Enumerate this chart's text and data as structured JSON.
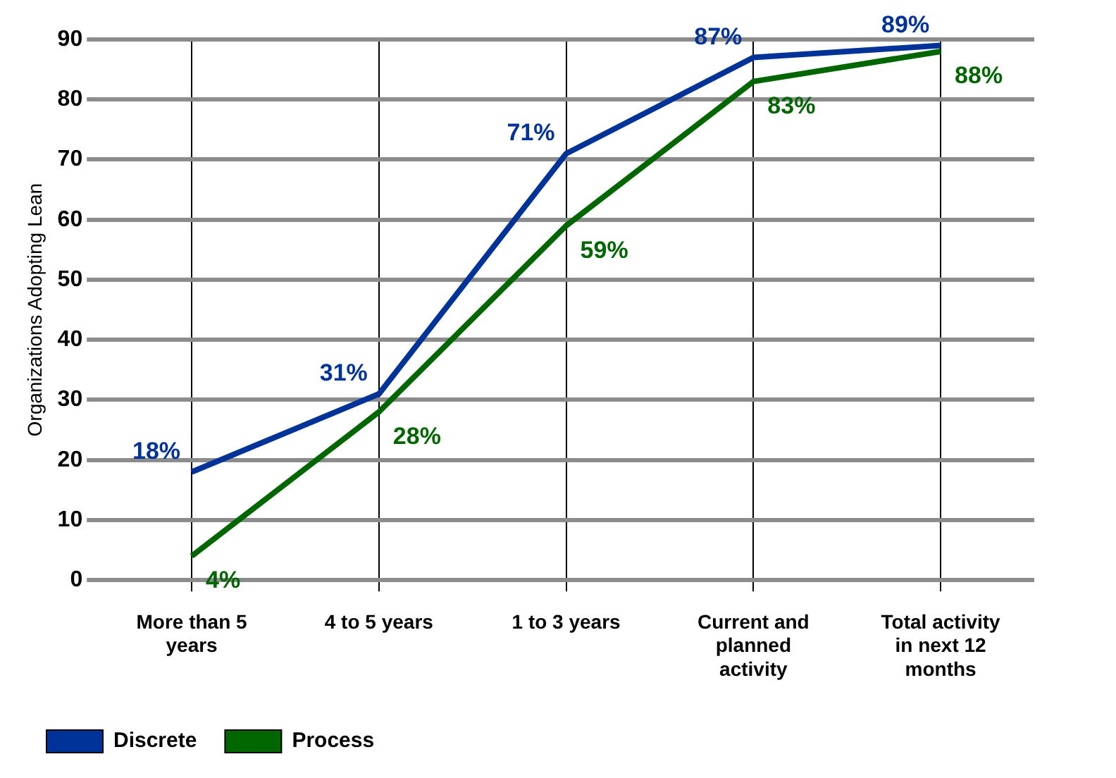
{
  "chart_data": {
    "type": "line",
    "ylabel": "Organizations Adopting Lean",
    "categories": [
      "More than 5 years",
      "4 to 5 years",
      "1 to 3 years",
      "Current and planned activity",
      "Total activity in next 12 months"
    ],
    "series": [
      {
        "name": "Discrete",
        "color": "#003399",
        "values": [
          18,
          31,
          71,
          87,
          89
        ],
        "value_labels": [
          "18%",
          "31%",
          "71%",
          "87%",
          "89%"
        ]
      },
      {
        "name": "Process",
        "color": "#006600",
        "values": [
          4,
          28,
          59,
          83,
          88
        ],
        "value_labels": [
          "4%",
          "28%",
          "59%",
          "83%",
          "88%"
        ]
      }
    ],
    "ylim": [
      0,
      90
    ],
    "yticks": [
      0,
      10,
      20,
      30,
      40,
      50,
      60,
      70,
      80,
      90
    ],
    "grid": true,
    "legend": "bottom left",
    "marker": "none",
    "line_style": "solid"
  }
}
